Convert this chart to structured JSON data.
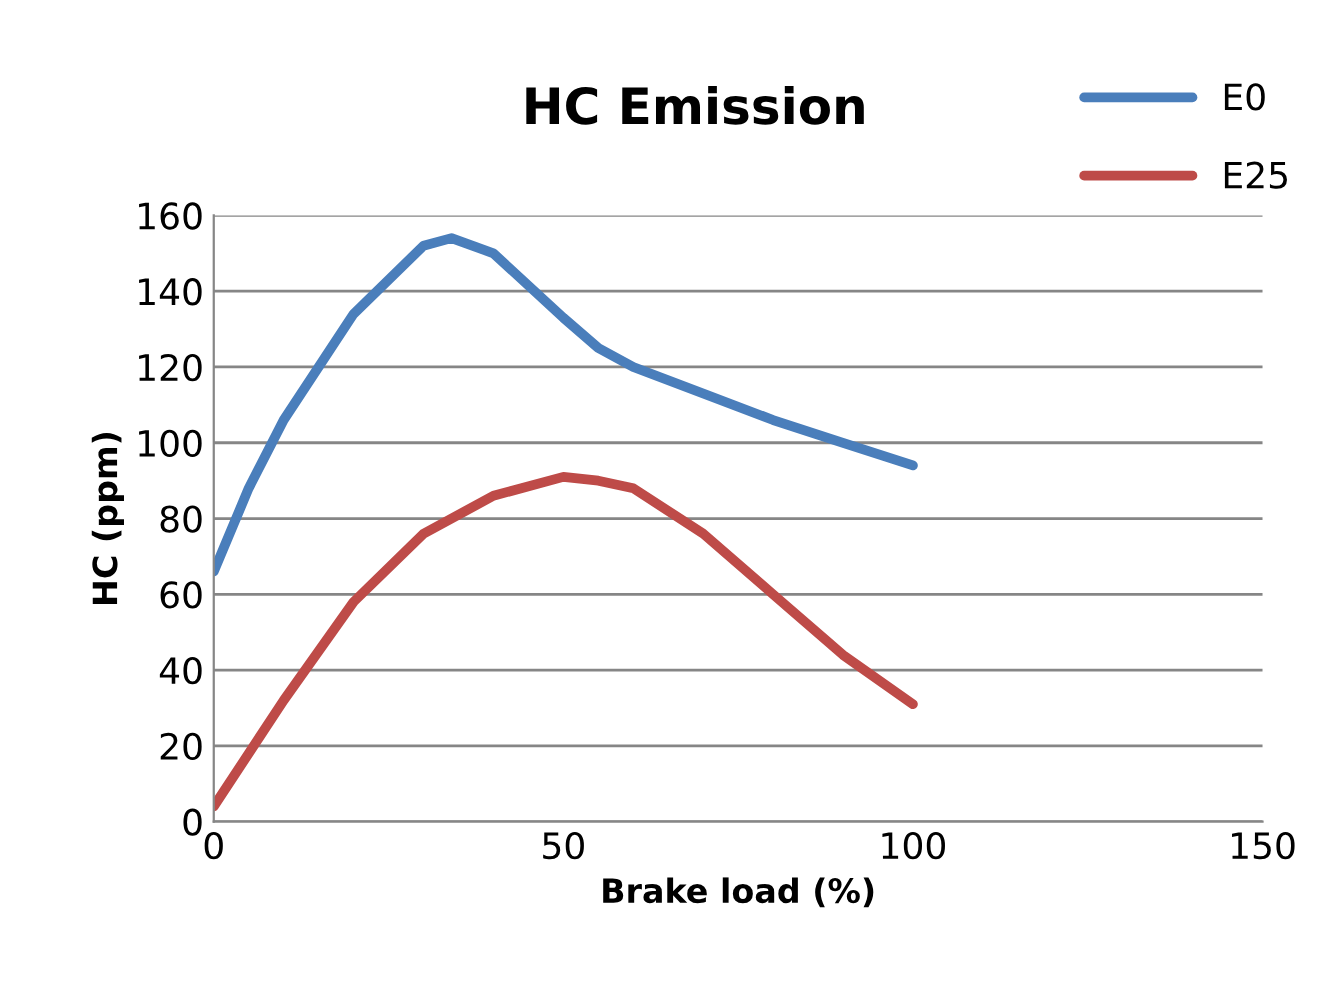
{
  "chart_data": {
    "type": "line",
    "title": "HC Emission",
    "xlabel": "Brake load (%)",
    "ylabel": "HC (ppm)",
    "xlim": [
      0,
      150
    ],
    "xticks": [
      0,
      50,
      100,
      150
    ],
    "ylim": [
      0,
      160
    ],
    "yticks": [
      0,
      20,
      40,
      60,
      80,
      100,
      120,
      140,
      160
    ],
    "grid": "y",
    "legend": "top right",
    "marker": "none",
    "line_style": "solid",
    "series": [
      {
        "name": "E0",
        "color": "#4a7ebb",
        "x": [
          0,
          5,
          10,
          20,
          30,
          34,
          40,
          50,
          55,
          60,
          70,
          80,
          90,
          100
        ],
        "values": [
          66,
          88,
          106,
          134,
          152,
          154,
          150,
          133,
          125,
          120,
          113,
          106,
          100,
          94
        ]
      },
      {
        "name": "E25",
        "color": "#be4b48",
        "x": [
          0,
          10,
          20,
          30,
          40,
          50,
          55,
          60,
          70,
          80,
          90,
          100
        ],
        "values": [
          4,
          32,
          58,
          76,
          86,
          91,
          90,
          88,
          76,
          60,
          44,
          31
        ]
      }
    ]
  }
}
